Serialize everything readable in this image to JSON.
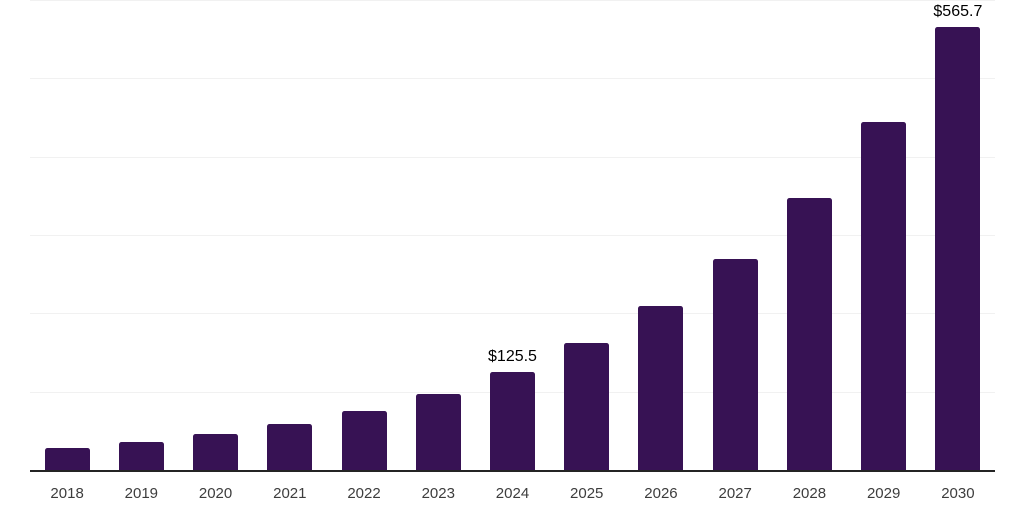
{
  "chart_data": {
    "type": "bar",
    "categories": [
      "2018",
      "2019",
      "2020",
      "2021",
      "2022",
      "2023",
      "2024",
      "2025",
      "2026",
      "2027",
      "2028",
      "2029",
      "2030"
    ],
    "values": [
      27.9,
      35.6,
      45.8,
      58.3,
      75.5,
      97.2,
      125.5,
      162.7,
      209.4,
      269.9,
      347.2,
      444.1,
      565.7
    ],
    "data_labels": [
      "",
      "",
      "",
      "",
      "",
      "",
      "$125.5",
      "",
      "",
      "",
      "",
      "",
      "$565.7"
    ],
    "value_prefix": "$",
    "ylim": [
      0,
      600
    ],
    "grid_step": 100,
    "grid": "horizontal",
    "legend": "none",
    "y_axis_labels": "none",
    "colors": {
      "bar": "#371254",
      "axis_line": "#242424",
      "gridline": "#f1f1f1",
      "tick_label": "#3d3d3d",
      "data_label": "#000000",
      "background": "#ffffff"
    }
  }
}
